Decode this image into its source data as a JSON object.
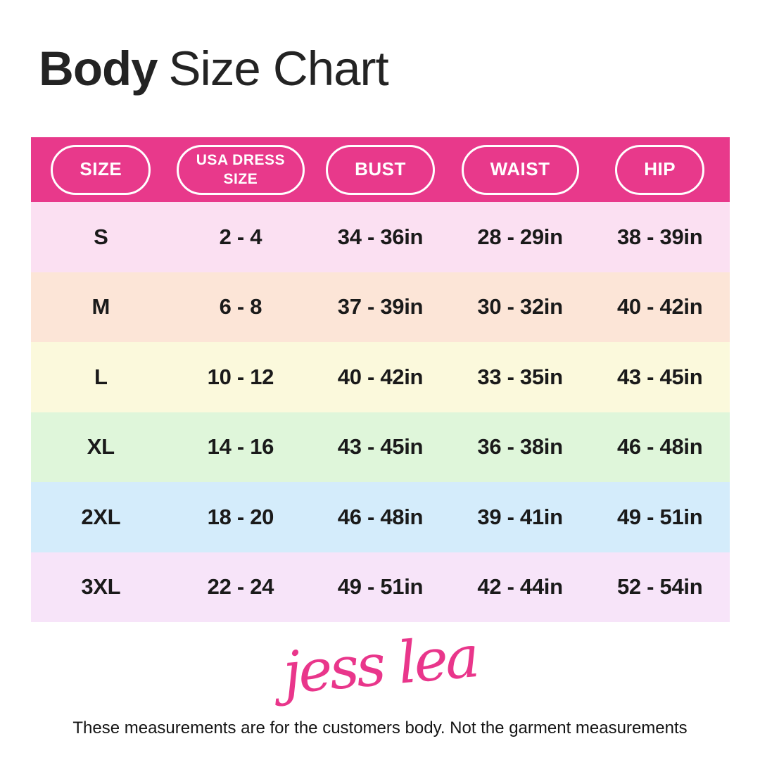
{
  "header": {
    "title_bold": "Body",
    "title_regular": "Size Chart"
  },
  "chart_data": {
    "type": "table",
    "title": "Body Size Chart",
    "columns": [
      "SIZE",
      "USA DRESS SIZE",
      "BUST",
      "WAIST",
      "HIP"
    ],
    "rows": [
      [
        "S",
        "2 - 4",
        "34 - 36in",
        "28 - 29in",
        "38 - 39in"
      ],
      [
        "M",
        "6 - 8",
        "37 - 39in",
        "30 - 32in",
        "40 - 42in"
      ],
      [
        "L",
        "10 - 12",
        "40 - 42in",
        "33 - 35in",
        "43 - 45in"
      ],
      [
        "XL",
        "14 - 16",
        "43 - 45in",
        "36 - 38in",
        "46 - 48in"
      ],
      [
        "2XL",
        "18 - 20",
        "46 - 48in",
        "39 - 41in",
        "49 - 51in"
      ],
      [
        "3XL",
        "22 - 24",
        "49 - 51in",
        "42 - 44in",
        "52 - 54in"
      ]
    ]
  },
  "colors": {
    "header_bg": "#E8398B",
    "header_pill_border": "#FFFFFF",
    "header_text": "#FFFFFF",
    "title_text": "#232323",
    "cell_text": "#1A1A1A",
    "brand_pink": "#E9368B",
    "row_backgrounds": [
      "#FBE0F2",
      "#FCE5D7",
      "#FBF9DC",
      "#DFF6DA",
      "#D4ECFB",
      "#F7E4F9"
    ]
  },
  "brand": {
    "logo_text": "jess lea"
  },
  "footer": {
    "note": "These measurements are for the customers body. Not the garment measurements"
  }
}
